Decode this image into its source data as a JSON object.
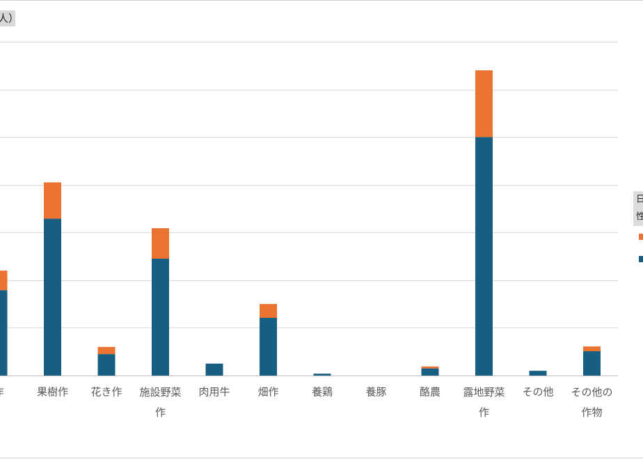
{
  "chart_data": {
    "type": "stacked_bar",
    "title": "人）",
    "legend_title_lines": [
      "日",
      "性"
    ],
    "categories": [
      "作",
      "果樹作",
      "花き作",
      "施設野菜作",
      "肉用牛",
      "畑作",
      "養鶏",
      "養豚",
      "酪農",
      "露地野菜作",
      "その他",
      "その他の作物"
    ],
    "series": [
      {
        "color": "#175f82",
        "values": [
          1.79,
          3.29,
          0.45,
          2.45,
          0.25,
          1.21,
          0.04,
          0,
          0.15,
          5.0,
          0.1,
          0.51
        ]
      },
      {
        "color": "#ea7332",
        "values": [
          0.41,
          0.76,
          0.15,
          0.64,
          0,
          0.29,
          0,
          0,
          0.04,
          1.4,
          0,
          0.1
        ]
      }
    ],
    "ylim": [
      0,
      7
    ],
    "yticks": [
      0,
      1,
      2,
      3,
      4,
      5,
      6,
      7
    ],
    "grid": true
  }
}
